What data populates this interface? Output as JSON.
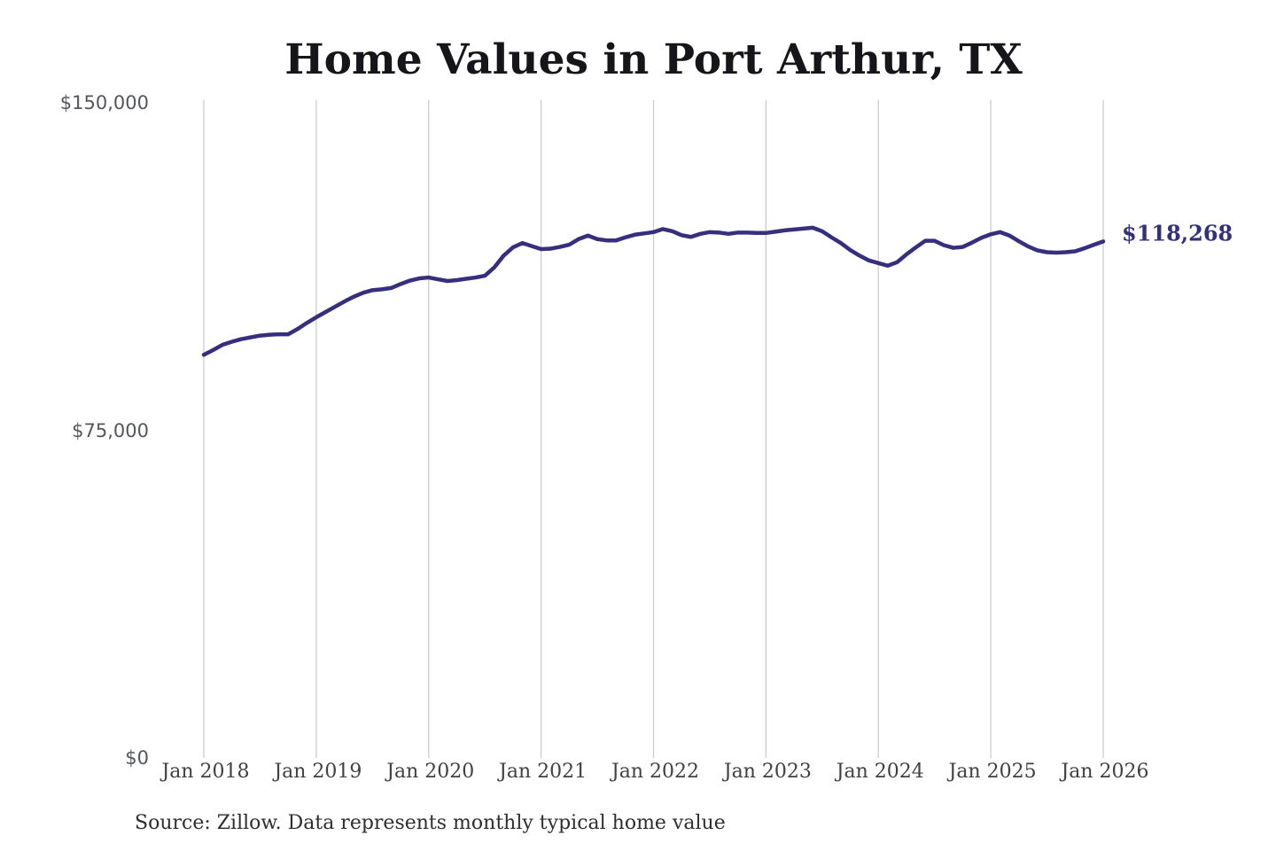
{
  "chart_data": {
    "type": "line",
    "title": "Home Values in Port Arthur, TX",
    "source_note": "Source: Zillow. Data represents monthly typical home value",
    "end_label": "$118,268",
    "end_value": 118268,
    "ylim": [
      0,
      150000
    ],
    "grid": "vertical-only",
    "legend": "none",
    "colors": {
      "line": "#352f7e",
      "end_label_text": "#333178",
      "gridline": "#cccccc",
      "y_tick_text": "#54565b",
      "x_tick_text": "#414142",
      "title_text": "#16161a",
      "background": "#ffffff"
    },
    "y_ticks": [
      {
        "label": "$150,000",
        "value": 150000
      },
      {
        "label": "$75,000",
        "value": 75000
      },
      {
        "label": "$0",
        "value": 0
      }
    ],
    "x_tick_labels": [
      "Jan 2018",
      "Jan 2019",
      "Jan 2020",
      "Jan 2021",
      "Jan 2022",
      "Jan 2023",
      "Jan 2024",
      "Jan 2025",
      "Jan 2026"
    ],
    "series": [
      {
        "name": "Monthly typical home value",
        "start": "Jan 2018",
        "end": "Jan 2026",
        "interval": "monthly",
        "values": [
          92300,
          93400,
          94600,
          95300,
          95900,
          96300,
          96700,
          96900,
          97000,
          97000,
          98200,
          99600,
          100900,
          102100,
          103300,
          104500,
          105600,
          106500,
          107100,
          107300,
          107600,
          108500,
          109300,
          109800,
          110000,
          109600,
          109200,
          109400,
          109700,
          110000,
          110400,
          112300,
          115000,
          116900,
          117900,
          117200,
          116500,
          116600,
          117000,
          117500,
          118800,
          119600,
          118800,
          118500,
          118500,
          119200,
          119800,
          120100,
          120400,
          121100,
          120600,
          119700,
          119300,
          120000,
          120400,
          120300,
          120000,
          120300,
          120300,
          120200,
          120200,
          120500,
          120800,
          121000,
          121200,
          121400,
          120600,
          119200,
          117900,
          116300,
          115000,
          113900,
          113300,
          112700,
          113500,
          115300,
          116900,
          118400,
          118400,
          117400,
          116800,
          117000,
          118000,
          119100,
          119900,
          120400,
          119600,
          118300,
          117100,
          116200,
          115800,
          115700,
          115800,
          116000,
          116700,
          117500,
          118268
        ]
      }
    ]
  }
}
